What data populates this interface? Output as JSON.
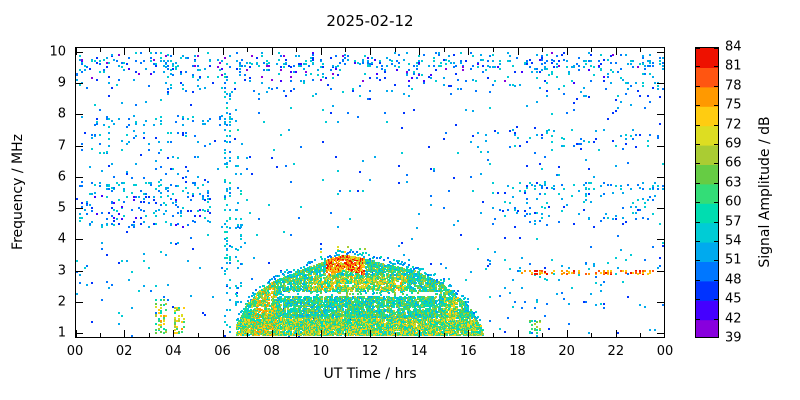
{
  "chart_data": {
    "type": "heatmap",
    "title": "2025-02-12",
    "xlabel": "UT Time / hrs",
    "ylabel": "Frequency / MHz",
    "colorbar_label": "Signal Amplitude / dB",
    "x_ticks": [
      "00",
      "02",
      "04",
      "06",
      "08",
      "10",
      "12",
      "14",
      "16",
      "18",
      "20",
      "22",
      "00"
    ],
    "x_range_hours": [
      0,
      24
    ],
    "y_ticks": [
      1,
      2,
      3,
      4,
      5,
      6,
      7,
      8,
      9,
      10
    ],
    "y_range_mhz": [
      1,
      10
    ],
    "grid": false,
    "legend": "colorbar-right",
    "colorbar_ticks": [
      39,
      42,
      45,
      48,
      51,
      54,
      57,
      60,
      63,
      66,
      69,
      72,
      75,
      78,
      81,
      84
    ],
    "colorbar_range_db": [
      39,
      84
    ],
    "colorbar_colors": [
      "#8800dd",
      "#4400ff",
      "#0033ff",
      "#0077ff",
      "#00aaee",
      "#00ccd5",
      "#00ddb0",
      "#33dd77",
      "#66cc44",
      "#aacc33",
      "#dddd22",
      "#ffcc11",
      "#ff9900",
      "#ff5511",
      "#ee1100"
    ],
    "echo_trace": {
      "description": "Ionospheric echo dome between ~06:40 and ~16:35 UT, peak critical frequency ~3.5 MHz near 11:00 UT",
      "hours": [
        6.6,
        7.0,
        7.5,
        8.0,
        8.5,
        9.0,
        9.5,
        10.0,
        10.5,
        11.0,
        11.5,
        12.0,
        12.5,
        13.0,
        13.5,
        14.0,
        14.5,
        15.0,
        15.5,
        16.0,
        16.6
      ],
      "top_mhz": [
        1.3,
        1.9,
        2.35,
        2.6,
        2.8,
        2.95,
        3.1,
        3.25,
        3.4,
        3.5,
        3.42,
        3.33,
        3.25,
        3.15,
        3.05,
        2.95,
        2.75,
        2.55,
        2.2,
        1.9,
        1.1
      ],
      "base_mhz": 0.95,
      "gap_line_mhz": 2.27,
      "peak_cluster": {
        "hours": [
          10.2,
          11.8
        ],
        "amp_db": [
          68,
          84
        ]
      }
    },
    "spur_line": {
      "hours": [
        18.2,
        23.6
      ],
      "mhz": 2.93,
      "amp_db": [
        72,
        84
      ]
    },
    "noise_regions": [
      {
        "t": [
          0,
          24
        ],
        "f": [
          9.3,
          10.0
        ],
        "density": 0.09,
        "amp": [
          46,
          57
        ]
      },
      {
        "t": [
          0,
          24
        ],
        "f": [
          9.55,
          9.75
        ],
        "density": 0.12,
        "amp": [
          48,
          57
        ]
      },
      {
        "t": [
          0,
          24
        ],
        "f": [
          8.6,
          9.3
        ],
        "density": 0.035,
        "amp": [
          46,
          57
        ]
      },
      {
        "t": [
          0,
          24
        ],
        "f": [
          0.9,
          10.0
        ],
        "density": 0.01,
        "amp": [
          45,
          57
        ]
      },
      {
        "t": [
          0,
          24
        ],
        "f": [
          9.0,
          10.0
        ],
        "density": 0.012,
        "amp": [
          39,
          45
        ]
      },
      {
        "t": [
          0,
          6.5
        ],
        "f": [
          7.65,
          7.95
        ],
        "density": 0.1,
        "amp": [
          48,
          57
        ]
      },
      {
        "t": [
          0,
          6.5
        ],
        "f": [
          6.6,
          7.4
        ],
        "density": 0.05,
        "amp": [
          46,
          57
        ]
      },
      {
        "t": [
          0,
          5.5
        ],
        "f": [
          5.55,
          5.85
        ],
        "density": 0.16,
        "amp": [
          48,
          57
        ]
      },
      {
        "t": [
          0,
          5.5
        ],
        "f": [
          4.4,
          5.5
        ],
        "density": 0.11,
        "amp": [
          44,
          57
        ]
      },
      {
        "t": [
          0.3,
          5.0
        ],
        "f": [
          5.9,
          6.5
        ],
        "density": 0.04,
        "amp": [
          46,
          55
        ]
      },
      {
        "t": [
          16.5,
          24
        ],
        "f": [
          4.5,
          5.8
        ],
        "density": 0.06,
        "amp": [
          46,
          57
        ]
      },
      {
        "t": [
          17.5,
          24
        ],
        "f": [
          5.6,
          5.8
        ],
        "density": 0.1,
        "amp": [
          48,
          57
        ]
      },
      {
        "t": [
          16,
          24
        ],
        "f": [
          6.8,
          7.5
        ],
        "density": 0.04,
        "amp": [
          46,
          57
        ]
      },
      {
        "t": [
          16.5,
          24
        ],
        "f": [
          1.8,
          3.5
        ],
        "density": 0.02,
        "amp": [
          48,
          57
        ]
      },
      {
        "t": [
          6.1,
          6.35
        ],
        "f": [
          1.0,
          10.0
        ],
        "density": 0.16,
        "amp": [
          50,
          58
        ]
      },
      {
        "t": [
          6.55,
          6.75
        ],
        "f": [
          1.0,
          8.2
        ],
        "density": 0.1,
        "amp": [
          50,
          58
        ]
      },
      {
        "t": [
          3.3,
          3.7
        ],
        "f": [
          1.0,
          2.1
        ],
        "density": 0.35,
        "amp": [
          57,
          76
        ]
      },
      {
        "t": [
          4.05,
          4.5
        ],
        "f": [
          1.0,
          1.9
        ],
        "density": 0.32,
        "amp": [
          57,
          76
        ]
      },
      {
        "t": [
          18.5,
          18.95
        ],
        "f": [
          1.0,
          1.45
        ],
        "density": 0.4,
        "amp": [
          57,
          72
        ]
      },
      {
        "t": [
          18.2,
          23.6
        ],
        "f": [
          2.88,
          2.98
        ],
        "density": 0.3,
        "amp": [
          72,
          84
        ]
      },
      {
        "t": [
          9.9,
          11.9
        ],
        "f": [
          3.5,
          3.75
        ],
        "density": 0.08,
        "amp": [
          58,
          78
        ]
      },
      {
        "t": [
          0,
          3.0
        ],
        "f": [
          2.0,
          3.3
        ],
        "density": 0.02,
        "amp": [
          48,
          57
        ]
      }
    ]
  }
}
